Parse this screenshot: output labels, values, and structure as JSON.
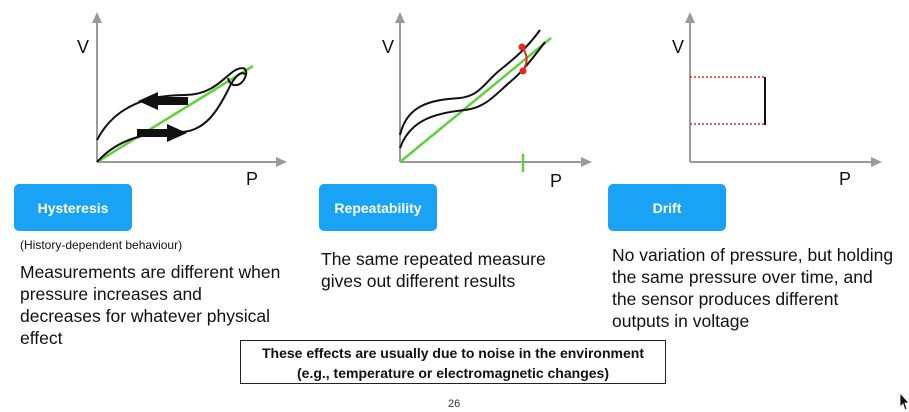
{
  "colors": {
    "accent": "#1aa3f5",
    "line": "#5fd13c",
    "marker": "#e8261c",
    "axis": "#9a9a9a"
  },
  "axis_labels": {
    "v": "V",
    "p": "P"
  },
  "cards": [
    {
      "button": "Hysteresis",
      "note": "(History-dependent behaviour)",
      "description": "Measurements are different when pressure increases and decreases for whatever physical effect"
    },
    {
      "button": "Repeatability",
      "description": "The same repeated measure gives out different results"
    },
    {
      "button": "Drift",
      "description": "No variation of pressure, but holding the same pressure over time, and the sensor produces different outputs in voltage"
    }
  ],
  "footer_box": {
    "line1": "These effects are usually due to noise in the environment",
    "line2": "(e.g., temperature or electromagnetic changes)"
  },
  "page_number": "26",
  "cursor_icon": "mouse-pointer-icon"
}
